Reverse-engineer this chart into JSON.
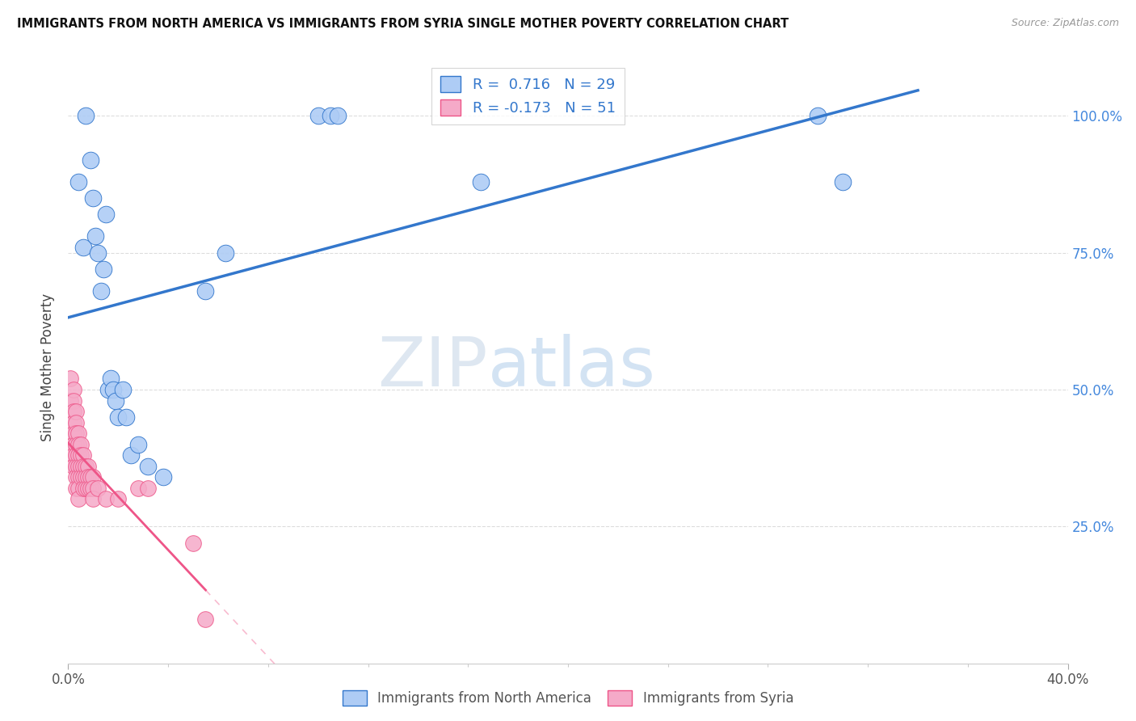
{
  "title": "IMMIGRANTS FROM NORTH AMERICA VS IMMIGRANTS FROM SYRIA SINGLE MOTHER POVERTY CORRELATION CHART",
  "source": "Source: ZipAtlas.com",
  "ylabel": "Single Mother Poverty",
  "ylim": [
    0.0,
    1.08
  ],
  "xlim": [
    0.0,
    0.4
  ],
  "legend_R_blue": "0.716",
  "legend_N_blue": "29",
  "legend_R_pink": "-0.173",
  "legend_N_pink": "51",
  "legend_label_blue": "Immigrants from North America",
  "legend_label_pink": "Immigrants from Syria",
  "blue_color": "#aeccf5",
  "pink_color": "#f5aac8",
  "blue_line_color": "#3377cc",
  "pink_line_color": "#ee5588",
  "blue_dots": [
    [
      0.004,
      0.88
    ],
    [
      0.006,
      0.76
    ],
    [
      0.007,
      1.0
    ],
    [
      0.009,
      0.92
    ],
    [
      0.01,
      0.85
    ],
    [
      0.011,
      0.78
    ],
    [
      0.012,
      0.75
    ],
    [
      0.013,
      0.68
    ],
    [
      0.014,
      0.72
    ],
    [
      0.015,
      0.82
    ],
    [
      0.016,
      0.5
    ],
    [
      0.017,
      0.52
    ],
    [
      0.018,
      0.5
    ],
    [
      0.019,
      0.48
    ],
    [
      0.02,
      0.45
    ],
    [
      0.022,
      0.5
    ],
    [
      0.023,
      0.45
    ],
    [
      0.025,
      0.38
    ],
    [
      0.028,
      0.4
    ],
    [
      0.032,
      0.36
    ],
    [
      0.038,
      0.34
    ],
    [
      0.055,
      0.68
    ],
    [
      0.063,
      0.75
    ],
    [
      0.1,
      1.0
    ],
    [
      0.105,
      1.0
    ],
    [
      0.108,
      1.0
    ],
    [
      0.165,
      0.88
    ],
    [
      0.3,
      1.0
    ],
    [
      0.31,
      0.88
    ]
  ],
  "pink_dots": [
    [
      0.001,
      0.52
    ],
    [
      0.001,
      0.48
    ],
    [
      0.002,
      0.5
    ],
    [
      0.002,
      0.48
    ],
    [
      0.002,
      0.46
    ],
    [
      0.002,
      0.44
    ],
    [
      0.002,
      0.42
    ],
    [
      0.002,
      0.4
    ],
    [
      0.002,
      0.38
    ],
    [
      0.002,
      0.36
    ],
    [
      0.003,
      0.46
    ],
    [
      0.003,
      0.44
    ],
    [
      0.003,
      0.42
    ],
    [
      0.003,
      0.4
    ],
    [
      0.003,
      0.38
    ],
    [
      0.003,
      0.36
    ],
    [
      0.003,
      0.34
    ],
    [
      0.003,
      0.32
    ],
    [
      0.004,
      0.42
    ],
    [
      0.004,
      0.4
    ],
    [
      0.004,
      0.38
    ],
    [
      0.004,
      0.36
    ],
    [
      0.004,
      0.34
    ],
    [
      0.004,
      0.32
    ],
    [
      0.004,
      0.3
    ],
    [
      0.005,
      0.4
    ],
    [
      0.005,
      0.38
    ],
    [
      0.005,
      0.36
    ],
    [
      0.005,
      0.34
    ],
    [
      0.006,
      0.38
    ],
    [
      0.006,
      0.36
    ],
    [
      0.006,
      0.34
    ],
    [
      0.006,
      0.32
    ],
    [
      0.007,
      0.36
    ],
    [
      0.007,
      0.34
    ],
    [
      0.007,
      0.32
    ],
    [
      0.008,
      0.36
    ],
    [
      0.008,
      0.34
    ],
    [
      0.008,
      0.32
    ],
    [
      0.009,
      0.34
    ],
    [
      0.009,
      0.32
    ],
    [
      0.01,
      0.34
    ],
    [
      0.01,
      0.32
    ],
    [
      0.01,
      0.3
    ],
    [
      0.012,
      0.32
    ],
    [
      0.015,
      0.3
    ],
    [
      0.02,
      0.3
    ],
    [
      0.028,
      0.32
    ],
    [
      0.032,
      0.32
    ],
    [
      0.05,
      0.22
    ],
    [
      0.055,
      0.08
    ]
  ],
  "ytick_positions": [
    0.0,
    0.25,
    0.5,
    0.75,
    1.0
  ],
  "ytick_labels": [
    "",
    "25.0%",
    "50.0%",
    "75.0%",
    "100.0%"
  ],
  "grid_color": "#dddddd",
  "tick_color": "#888888"
}
